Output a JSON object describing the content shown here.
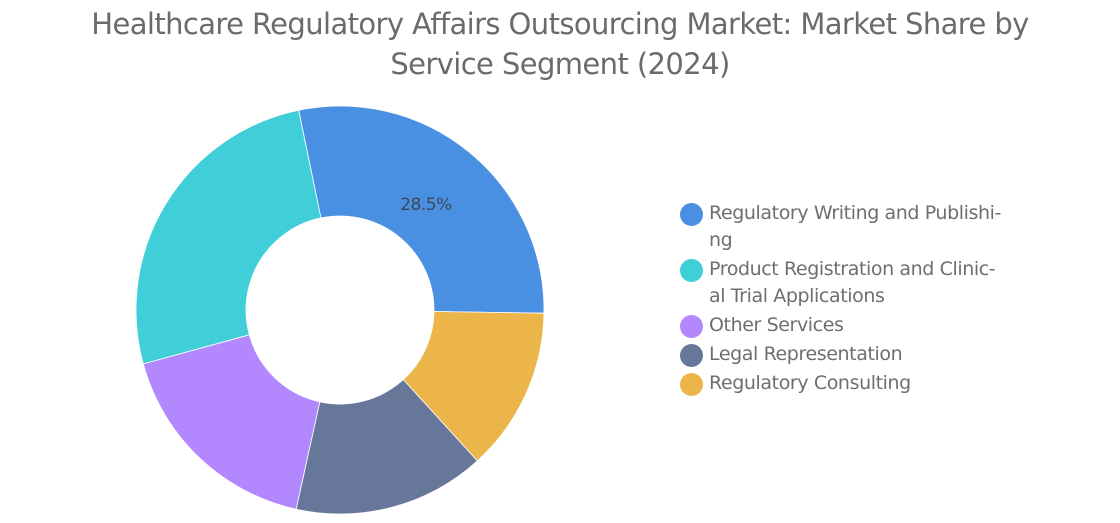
{
  "title": "Healthcare Regulatory Affairs Outsourcing Market: Market Share by Service Segment (2024)",
  "title_lines": [
    "Healthcare Regulatory Affairs Outsourcing Market: Market Share by",
    "Service Segment (2024)"
  ],
  "legend": [
    {
      "label": "Regulatory Writing and Publishi-ng",
      "lines": [
        "Regulatory Writing and Publishi-",
        "ng"
      ],
      "color": "#4a90e2"
    },
    {
      "label": "Product Registration and Clinic-al Trial Applications",
      "lines": [
        "Product Registration and Clinic-",
        "al Trial Applications"
      ],
      "color": "#40cfd9"
    },
    {
      "label": "Other Services",
      "lines": [
        "Other Services"
      ],
      "color": "#b388ff"
    },
    {
      "label": "Legal Representation",
      "lines": [
        "Legal Representation"
      ],
      "color": "#667799"
    },
    {
      "label": "Regulatory Consulting",
      "lines": [
        "Regulatory Consulting"
      ],
      "color": "#ebb54a"
    }
  ],
  "chart_data": {
    "type": "pie",
    "subtype": "donut",
    "title": "Healthcare Regulatory Affairs Outsourcing Market: Market Share by Service Segment (2024)",
    "categories": [
      "Regulatory Writing and Publishing",
      "Regulatory Consulting",
      "Legal Representation",
      "Other Services",
      "Product Registration and Clinical Trial Applications"
    ],
    "values": [
      28.5,
      13.0,
      15.2,
      17.3,
      26.0
    ],
    "colors": [
      "#4a90e2",
      "#ebb54a",
      "#667799",
      "#b388ff",
      "#40cfd9"
    ],
    "start_angle_deg": -11.7,
    "data_labels": [
      {
        "category": "Regulatory Writing and Publishing",
        "text": "28.5%"
      }
    ],
    "legend_position": "right",
    "unit": "%"
  }
}
